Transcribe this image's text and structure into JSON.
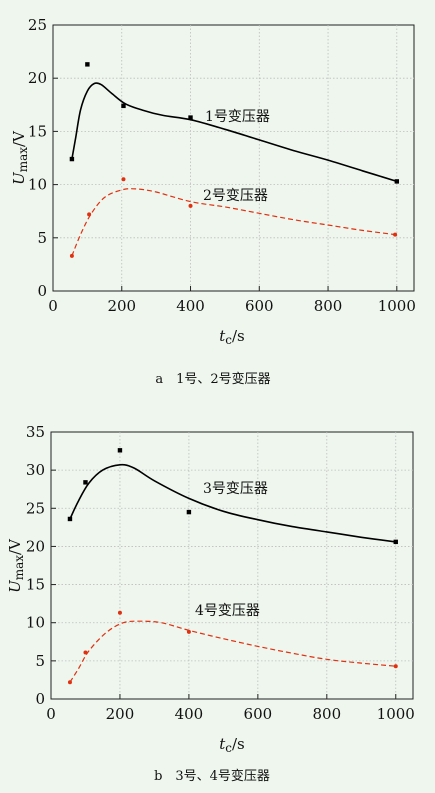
{
  "chart_data": [
    {
      "id": "a",
      "type": "scatter",
      "caption": "a　1号、2号变压器",
      "x_unit": "/s",
      "y_unit": "/V",
      "xlim": [
        0,
        1050
      ],
      "ylim": [
        0,
        25
      ],
      "xticks": [
        0,
        200,
        400,
        600,
        800,
        1000
      ],
      "yticks": [
        0,
        5,
        10,
        15,
        20,
        25
      ],
      "grid": true,
      "series": [
        {
          "name": "1号变压器",
          "color": "#000000",
          "marker": "square",
          "line_style": "solid",
          "points": [
            [
              55,
              12.4
            ],
            [
              100,
              21.3
            ],
            [
              205,
              17.4
            ],
            [
              400,
              16.3
            ],
            [
              1000,
              10.3
            ]
          ],
          "curve": [
            [
              55,
              12.4
            ],
            [
              65,
              14.2
            ],
            [
              80,
              17.0
            ],
            [
              100,
              18.8
            ],
            [
              120,
              19.5
            ],
            [
              140,
              19.4
            ],
            [
              170,
              18.6
            ],
            [
              210,
              17.6
            ],
            [
              260,
              17.0
            ],
            [
              320,
              16.5
            ],
            [
              400,
              16.1
            ],
            [
              500,
              15.2
            ],
            [
              600,
              14.2
            ],
            [
              700,
              13.2
            ],
            [
              800,
              12.3
            ],
            [
              900,
              11.3
            ],
            [
              1000,
              10.3
            ]
          ]
        },
        {
          "name": "2号变压器",
          "color": "#e03010",
          "marker": "dot",
          "line_style": "dashed",
          "points": [
            [
              55,
              3.3
            ],
            [
              105,
              7.2
            ],
            [
              205,
              10.5
            ],
            [
              400,
              8.0
            ],
            [
              995,
              5.3
            ]
          ],
          "curve": [
            [
              55,
              3.3
            ],
            [
              80,
              5.3
            ],
            [
              110,
              7.2
            ],
            [
              150,
              8.8
            ],
            [
              200,
              9.5
            ],
            [
              240,
              9.6
            ],
            [
              300,
              9.3
            ],
            [
              400,
              8.4
            ],
            [
              500,
              7.9
            ],
            [
              600,
              7.3
            ],
            [
              700,
              6.7
            ],
            [
              800,
              6.2
            ],
            [
              900,
              5.7
            ],
            [
              995,
              5.3
            ]
          ]
        }
      ]
    },
    {
      "id": "b",
      "type": "scatter",
      "caption": "b　3号、4号变压器",
      "x_unit": "/s",
      "y_unit": "/V",
      "xlim": [
        0,
        1050
      ],
      "ylim": [
        0,
        35
      ],
      "xticks": [
        0,
        200,
        400,
        600,
        800,
        1000
      ],
      "yticks": [
        0,
        5,
        10,
        15,
        20,
        25,
        30,
        35
      ],
      "grid": true,
      "series": [
        {
          "name": "3号变压器",
          "color": "#000000",
          "marker": "square",
          "line_style": "solid",
          "points": [
            [
              55,
              23.6
            ],
            [
              100,
              28.4
            ],
            [
              200,
              32.6
            ],
            [
              400,
              24.5
            ],
            [
              1000,
              20.6
            ]
          ],
          "curve": [
            [
              55,
              23.6
            ],
            [
              80,
              26.0
            ],
            [
              110,
              28.3
            ],
            [
              150,
              30.0
            ],
            [
              200,
              30.7
            ],
            [
              240,
              30.3
            ],
            [
              300,
              28.6
            ],
            [
              400,
              26.3
            ],
            [
              500,
              24.6
            ],
            [
              600,
              23.5
            ],
            [
              700,
              22.6
            ],
            [
              800,
              21.9
            ],
            [
              900,
              21.2
            ],
            [
              1000,
              20.6
            ]
          ]
        },
        {
          "name": "4号变压器",
          "color": "#e03010",
          "marker": "dot",
          "line_style": "dashed",
          "points": [
            [
              55,
              2.2
            ],
            [
              100,
              6.1
            ],
            [
              200,
              11.3
            ],
            [
              400,
              8.8
            ],
            [
              1000,
              4.3
            ]
          ],
          "curve": [
            [
              55,
              2.2
            ],
            [
              80,
              4.0
            ],
            [
              110,
              6.3
            ],
            [
              160,
              8.7
            ],
            [
              210,
              10.0
            ],
            [
              260,
              10.2
            ],
            [
              320,
              10.0
            ],
            [
              400,
              9.0
            ],
            [
              500,
              7.9
            ],
            [
              600,
              6.9
            ],
            [
              700,
              6.0
            ],
            [
              800,
              5.2
            ],
            [
              900,
              4.7
            ],
            [
              1000,
              4.3
            ]
          ]
        }
      ]
    }
  ],
  "labels": {
    "a": {
      "y_main": "U",
      "y_sub": "max",
      "x_main": "t",
      "x_sub": "c"
    },
    "b": {
      "y_main": "U",
      "y_sub": "max",
      "x_main": "t",
      "x_sub": "c"
    }
  }
}
